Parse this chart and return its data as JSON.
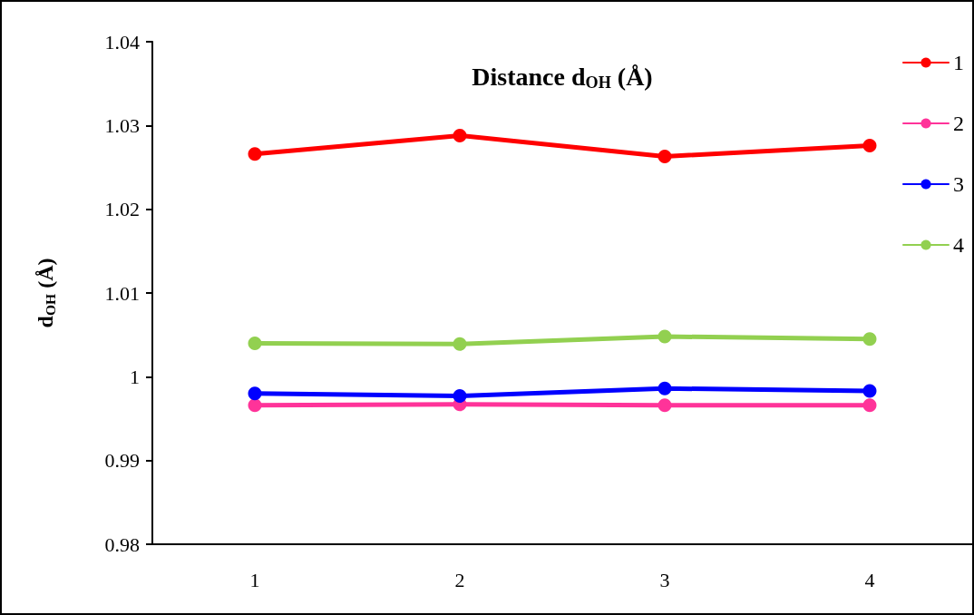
{
  "chart_data": {
    "type": "line",
    "title": "Distance d$_{OH}$ (Å)",
    "ylabel": "d$_{OH}$ (Å)",
    "categories": [
      "1",
      "2",
      "3",
      "4"
    ],
    "series": [
      {
        "name": "1",
        "color": "#ff0000",
        "values": [
          1.0266,
          1.0288,
          1.0263,
          1.0276
        ]
      },
      {
        "name": "2",
        "color": "#ff3399",
        "values": [
          0.9966,
          0.9967,
          0.9966,
          0.9966
        ]
      },
      {
        "name": "3",
        "color": "#0000ff",
        "values": [
          0.998,
          0.9977,
          0.9986,
          0.9983
        ]
      },
      {
        "name": "4",
        "color": "#92d050",
        "values": [
          1.004,
          1.0039,
          1.0048,
          1.0045
        ]
      }
    ],
    "ylim": [
      0.98,
      1.04
    ],
    "yticks": [
      0.98,
      0.99,
      1,
      1.01,
      1.02,
      1.03,
      1.04
    ],
    "grid": false,
    "legend": "top right",
    "marker": "circle",
    "line_style": "solid"
  }
}
